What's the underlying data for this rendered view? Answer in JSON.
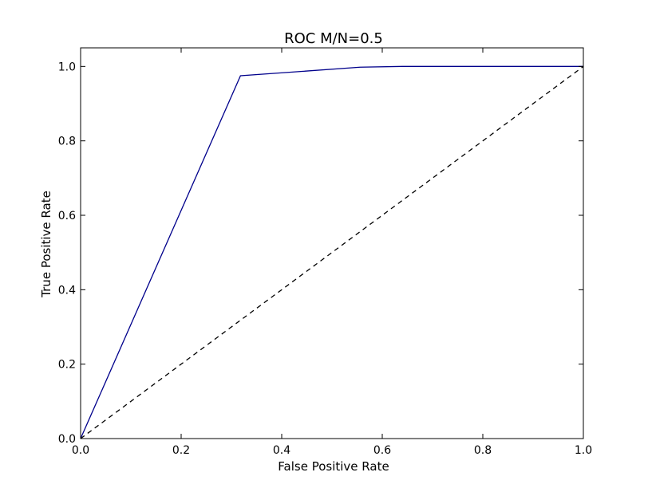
{
  "chart_data": {
    "type": "line",
    "title": "ROC M/N=0.5",
    "xlabel": "False Positive Rate",
    "ylabel": "True Positive Rate",
    "xlim": [
      0.0,
      1.0
    ],
    "ylim": [
      0.0,
      1.05
    ],
    "xticks": [
      "0.0",
      "0.2",
      "0.4",
      "0.6",
      "0.8",
      "1.0"
    ],
    "yticks": [
      "0.0",
      "0.2",
      "0.4",
      "0.6",
      "0.8",
      "1.0"
    ],
    "grid": false,
    "legend": "none",
    "series": [
      {
        "style": "solid",
        "color": "#00008b",
        "x": [
          0.0,
          0.318,
          0.556,
          0.64,
          1.0
        ],
        "y": [
          0.0,
          0.975,
          0.998,
          1.0,
          1.0
        ]
      },
      {
        "style": "dashed",
        "color": "#000000",
        "x": [
          0.0,
          1.0
        ],
        "y": [
          0.0,
          1.0
        ]
      }
    ]
  }
}
